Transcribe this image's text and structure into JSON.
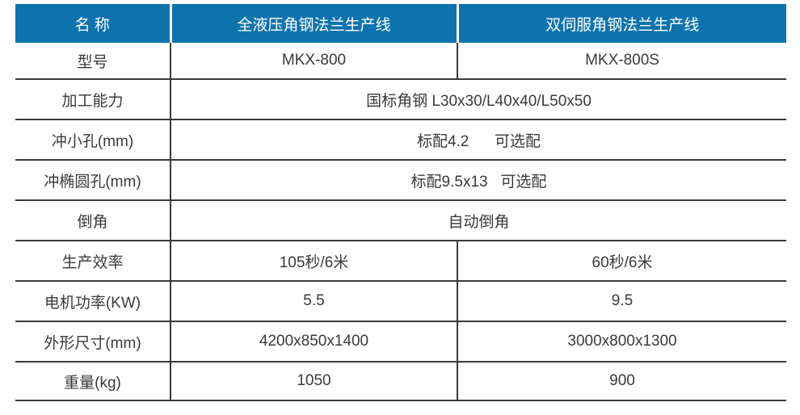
{
  "colors": {
    "header_bg": "#0d73af",
    "header_text": "#ffffff",
    "body_text": "#3a3a3a",
    "border": "#3a3a3a"
  },
  "table": {
    "header": {
      "col1": "名 称",
      "col2": "全液压角钢法兰生产线",
      "col3": "双伺服角钢法兰生产线"
    },
    "rows": [
      {
        "label": "型号",
        "col2": "MKX-800",
        "col3": "MKX-800S"
      },
      {
        "label": "加工能力",
        "value": "国标角钢 L30x30/L40x40/L50x50"
      },
      {
        "label": "冲小孔(mm)",
        "value": "标配4.2      可选配"
      },
      {
        "label": "冲椭圆孔(mm)",
        "value": "标配9.5x13   可选配"
      },
      {
        "label": "倒角",
        "value": "自动倒角"
      },
      {
        "label": "生产效率",
        "col2": "105秒/6米",
        "col3": "60秒/6米"
      },
      {
        "label": "电机功率(KW)",
        "col2": "5.5",
        "col3": "9.5"
      },
      {
        "label": "外形尺寸(mm)",
        "col2": "4200x850x1400",
        "col3": "3000x800x1300"
      },
      {
        "label": "重量(kg)",
        "col2": "1050",
        "col3": "900"
      }
    ]
  }
}
